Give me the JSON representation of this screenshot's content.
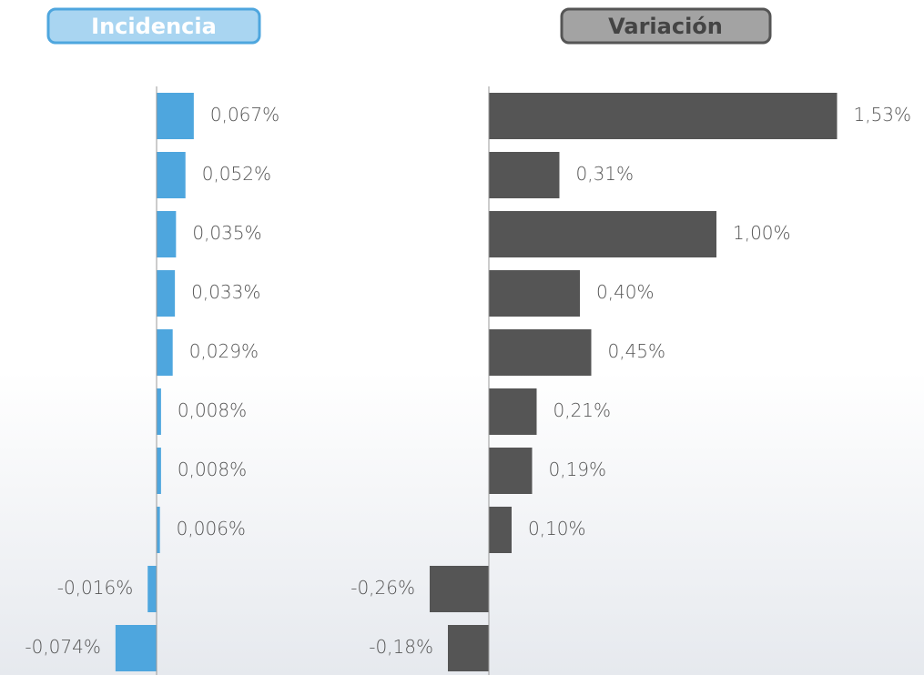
{
  "chart_data": [
    {
      "type": "bar",
      "orientation": "horizontal",
      "title": "Incidencia",
      "values": [
        0.067,
        0.052,
        0.035,
        0.033,
        0.029,
        0.008,
        0.008,
        0.006,
        -0.016,
        -0.074
      ],
      "value_labels": [
        "0,067%",
        "0,052%",
        "0,035%",
        "0,033%",
        "0,029%",
        "0,008%",
        "0,008%",
        "0,006%",
        "-0,016%",
        "-0,074%"
      ],
      "color": "#4ea6de",
      "xlim": [
        -0.1,
        0.1
      ]
    },
    {
      "type": "bar",
      "orientation": "horizontal",
      "title": "Variación",
      "values": [
        1.53,
        0.31,
        1.0,
        0.4,
        0.45,
        0.21,
        0.19,
        0.1,
        -0.26,
        -0.18
      ],
      "value_labels": [
        "1,53%",
        "0,31%",
        "1,00%",
        "0,40%",
        "0,45%",
        "0,21%",
        "0,19%",
        "0,10%",
        "-0,26%",
        "-0,18%"
      ],
      "color": "#555555",
      "xlim": [
        -0.5,
        1.6
      ]
    }
  ]
}
